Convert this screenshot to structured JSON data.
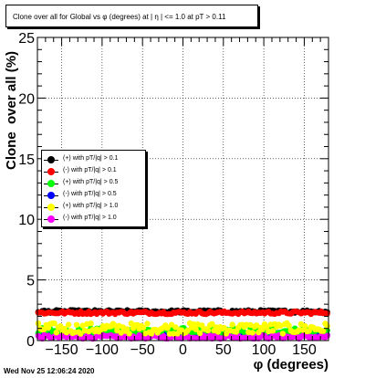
{
  "title": "Clone  over all for Global vs φ (degrees) at | η | <= 1.0 at pT > 0.11",
  "datestamp": "Wed Nov 25 12:06:24 2020",
  "colors": {
    "black": "#000000",
    "red": "#ff0000",
    "green": "#00ff00",
    "blue": "#0000ff",
    "yellow": "#ffff00",
    "magenta": "#ff00ff"
  },
  "chart_data": {
    "type": "scatter",
    "title": "Clone  over all for Global vs φ (degrees) at | η | <= 1.0 at pT > 0.11",
    "xlabel": "φ (degrees)",
    "ylabel": "Clone  over all (%)",
    "xlim": [
      -180,
      180
    ],
    "ylim": [
      0,
      25
    ],
    "xticks": [
      -150,
      -100,
      -50,
      0,
      50,
      100,
      150
    ],
    "yticks": [
      0,
      5,
      10,
      15,
      20,
      25
    ],
    "grid": true,
    "legend_position": "center-left",
    "series": [
      {
        "name": "(+) with pT/|q| > 0.1",
        "color": "#000000",
        "level": 2.4
      },
      {
        "name": "(-) with pT/|q| > 0.1",
        "color": "#ff0000",
        "level": 2.3
      },
      {
        "name": "(+) with pT/|q| > 0.5",
        "color": "#00ff00",
        "level": 0.8
      },
      {
        "name": "(-) with pT/|q| > 0.5",
        "color": "#0000ff",
        "level": 0.5
      },
      {
        "name": "(+) with pT/|q| > 1.0",
        "color": "#ffff00",
        "level": 1.0
      },
      {
        "name": "(-) with pT/|q| > 1.0",
        "color": "#ff00ff",
        "level": 0.3
      }
    ]
  }
}
